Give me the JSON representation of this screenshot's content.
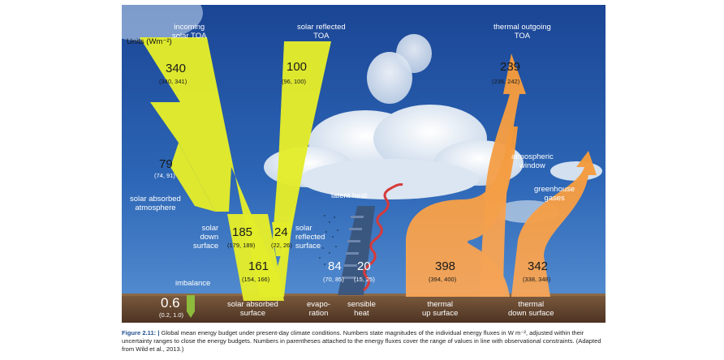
{
  "units": "Units (Wm⁻²)",
  "fluxes": {
    "incoming_solar_toa": {
      "label_1": "incoming",
      "label_2": "solar TOA",
      "value": "340",
      "range": "(340, 341)"
    },
    "solar_reflected_toa": {
      "label_1": "solar reflected",
      "label_2": "TOA",
      "value": "100",
      "range": "(96, 100)"
    },
    "thermal_outgoing_toa": {
      "label_1": "thermal outgoing",
      "label_2": "TOA",
      "value": "239",
      "range": "(236, 242)"
    },
    "solar_absorbed_atmosphere": {
      "label_1": "solar absorbed",
      "label_2": "atmosphere",
      "value": "79",
      "range": "(74, 91)"
    },
    "solar_down_surface": {
      "label_1": "solar",
      "label_2": "down",
      "label_3": "surface",
      "value": "185",
      "range": "(179, 189)"
    },
    "solar_reflected_surface": {
      "label_1": "solar",
      "label_2": "reflected",
      "label_3": "surface",
      "value": "24",
      "range": "(22, 26)"
    },
    "solar_absorbed_surface": {
      "label_1": "solar absorbed",
      "label_2": "surface",
      "value": "161",
      "range": "(154, 166)"
    },
    "evaporation": {
      "label_1": "evapo-",
      "label_2": "ration",
      "value": "84",
      "range": "(70, 85)"
    },
    "sensible_heat": {
      "label_1": "sensible",
      "label_2": "heat",
      "value": "20",
      "range": "(15, 25)"
    },
    "thermal_up_surface": {
      "label_1": "thermal",
      "label_2": "up surface",
      "value": "398",
      "range": "(394, 400)"
    },
    "thermal_down_surface": {
      "label_1": "thermal",
      "label_2": "down surface",
      "value": "342",
      "range": "(338, 348)"
    },
    "imbalance": {
      "label": "imbalance",
      "value": "0.6",
      "range": "(0.2, 1.0)"
    }
  },
  "labels": {
    "latent_heat": "latent heat",
    "atmospheric_window_1": "atmospheric",
    "atmospheric_window_2": "window",
    "greenhouse_gases_1": "greenhouse",
    "greenhouse_gases_2": "gases"
  },
  "caption": {
    "lead": "Figure 2.11: |",
    "text": "Global mean energy budget under present-day climate conditions. Numbers state magnitudes of the individual energy fluxes in W m⁻², adjusted within their uncertainty ranges to close the energy budgets. Numbers in parentheses attached to the energy fluxes cover the range of values in line with observational constraints. (Adapted from Wild et al., 2013.)"
  },
  "colors": {
    "sky_top": "#1e4a9a",
    "sky_bottom": "#3f7fc9",
    "solar_arrow": "#e3ec2a",
    "thermal_arrow": "#f39a3c",
    "ground": "#6b4a33",
    "caption_lead": "#1f4f8f"
  }
}
